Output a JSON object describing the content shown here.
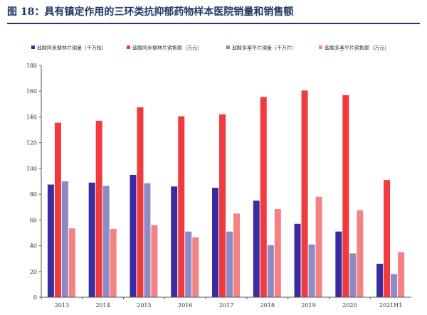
{
  "figure": {
    "title": "图 18：具有镇定作用的三环类抗抑郁药物样本医院销量和销售额"
  },
  "chart_data": {
    "type": "bar",
    "categories": [
      "2013",
      "2014",
      "2015",
      "2016",
      "2017",
      "2018",
      "2019",
      "2020",
      "2021H1"
    ],
    "series": [
      {
        "name": "盐酸阿米替林片销量（千万粒）",
        "color": "#3a2c9e",
        "values": [
          87.5,
          89,
          95,
          86,
          85,
          75,
          57,
          51,
          26
        ]
      },
      {
        "name": "盐酸阿米替林片销售额（万元）",
        "color": "#f03a3e",
        "values": [
          135.5,
          137,
          147.5,
          140.5,
          142,
          155.5,
          160.5,
          157,
          91
        ]
      },
      {
        "name": "盐酸多塞平片销量（千万片）",
        "color": "#8f89c4",
        "values": [
          90,
          86.5,
          88.5,
          51,
          51,
          40.5,
          41,
          34,
          18
        ]
      },
      {
        "name": "盐酸多塞平片销售额（万元）",
        "color": "#f48282",
        "values": [
          53.5,
          53,
          56,
          46.5,
          65,
          68.5,
          78,
          67.5,
          35
        ]
      }
    ],
    "ylim": [
      0,
      180
    ],
    "yticks": [
      "0",
      "20",
      "40",
      "60",
      "80",
      "100",
      "120",
      "140",
      "160",
      "180"
    ],
    "legend_position": "top",
    "grid": false
  }
}
